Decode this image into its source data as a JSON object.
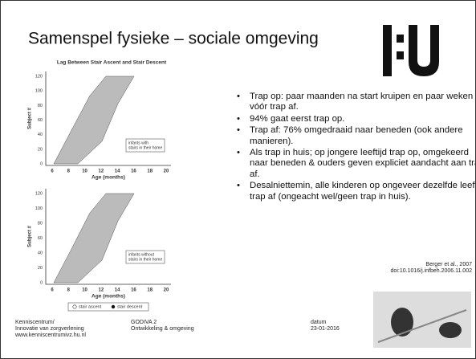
{
  "header": {
    "title": "Samenspel fysieke – sociale omgeving"
  },
  "figures": [
    {
      "title": "Lag Between Stair Ascent and Stair Descent",
      "y_label": "Subject #",
      "x_label": "Age (months)",
      "yticks": [
        "0",
        "20",
        "40",
        "60",
        "80",
        "100",
        "120"
      ],
      "xticks": [
        "6",
        "8",
        "10",
        "12",
        "14",
        "16",
        "18",
        "20"
      ],
      "annotation": [
        "infants with",
        "stairs in their home"
      ]
    },
    {
      "y_label": "Subject #",
      "x_label": "Age (months)",
      "yticks": [
        "0",
        "20",
        "40",
        "60",
        "80",
        "100",
        "120"
      ],
      "xticks": [
        "6",
        "8",
        "10",
        "12",
        "14",
        "16",
        "18",
        "20"
      ],
      "annotation": [
        "infants without",
        "stairs in their home"
      ],
      "legend": [
        "stair ascent",
        "stair descent"
      ]
    }
  ],
  "bullets": [
    "Trap op: paar maanden na start kruipen en paar weken vóór trap af.",
    "94% gaat eerst trap op.",
    "Trap af: 76% omgedraaid naar beneden (ook andere manieren).",
    "Als trap in huis; op jongere leeftijd trap op, omgekeerd naar beneden & ouders geven expliciet aandacht aan trap af.",
    "Desalniettemin, alle kinderen op ongeveer dezelfde leeftijd trap af (ongeacht wel/geen trap in huis)."
  ],
  "citation": [
    "Berger et al., 2007",
    "doi:10.1016/j.infbeh.2006.11.002"
  ],
  "footer": {
    "left": [
      "Kenniscentrum/",
      "Innovatie van zorgverlening",
      "www.kenniscentrumivz.hu.nl"
    ],
    "center": [
      "GODIVA 2",
      "Ontwikkeling & omgeving"
    ],
    "date": [
      "datum",
      "23-01-2016"
    ]
  }
}
